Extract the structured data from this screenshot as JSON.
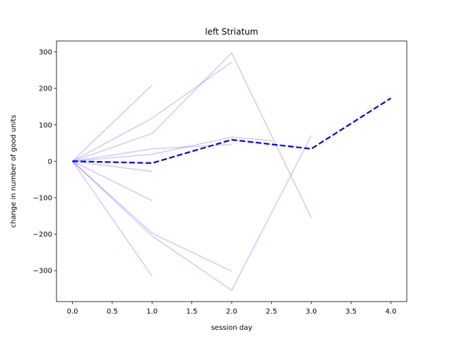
{
  "chart_data": {
    "type": "line",
    "title": "left Striatum",
    "xlabel": "session day",
    "ylabel": "change in number of good units",
    "xlim": [
      -0.2,
      4.2
    ],
    "ylim": [
      -385,
      330
    ],
    "xticks": [
      0.0,
      0.5,
      1.0,
      1.5,
      2.0,
      2.5,
      3.0,
      3.5,
      4.0
    ],
    "xtick_labels": [
      "0.0",
      "0.5",
      "1.0",
      "1.5",
      "2.0",
      "2.5",
      "3.0",
      "3.5",
      "4.0"
    ],
    "yticks": [
      -300,
      -200,
      -100,
      0,
      100,
      200,
      300
    ],
    "ytick_labels": [
      "−300",
      "−200",
      "−100",
      "0",
      "100",
      "200",
      "300"
    ],
    "grid": false,
    "legend": false,
    "series": [
      {
        "style": "individual",
        "x": [
          0,
          1
        ],
        "y": [
          0,
          209
        ]
      },
      {
        "style": "individual",
        "x": [
          0,
          1,
          2
        ],
        "y": [
          0,
          118,
          272
        ]
      },
      {
        "style": "individual",
        "x": [
          0,
          1,
          2,
          3
        ],
        "y": [
          0,
          76,
          297,
          -155
        ]
      },
      {
        "style": "individual",
        "x": [
          0,
          1,
          2
        ],
        "y": [
          0,
          34,
          46
        ]
      },
      {
        "style": "individual",
        "x": [
          0,
          1,
          2,
          2.5
        ],
        "y": [
          0,
          19,
          66,
          57
        ]
      },
      {
        "style": "individual",
        "x": [
          0,
          1
        ],
        "y": [
          0,
          -28
        ]
      },
      {
        "style": "individual",
        "x": [
          0,
          1
        ],
        "y": [
          0,
          -108
        ]
      },
      {
        "style": "individual",
        "x": [
          0,
          1,
          2
        ],
        "y": [
          0,
          -197,
          -302
        ]
      },
      {
        "style": "individual",
        "x": [
          0,
          1,
          2,
          3
        ],
        "y": [
          0,
          -205,
          -354,
          70
        ]
      },
      {
        "style": "individual",
        "x": [
          0,
          1
        ],
        "y": [
          0,
          -315
        ]
      },
      {
        "style": "mean",
        "x": [
          0,
          1,
          2,
          3,
          4
        ],
        "y": [
          0,
          -5,
          59,
          34,
          173
        ]
      }
    ],
    "colors": {
      "individual": "#0000ff",
      "individual_opacity": 0.2,
      "mean": "#0000ff"
    }
  }
}
